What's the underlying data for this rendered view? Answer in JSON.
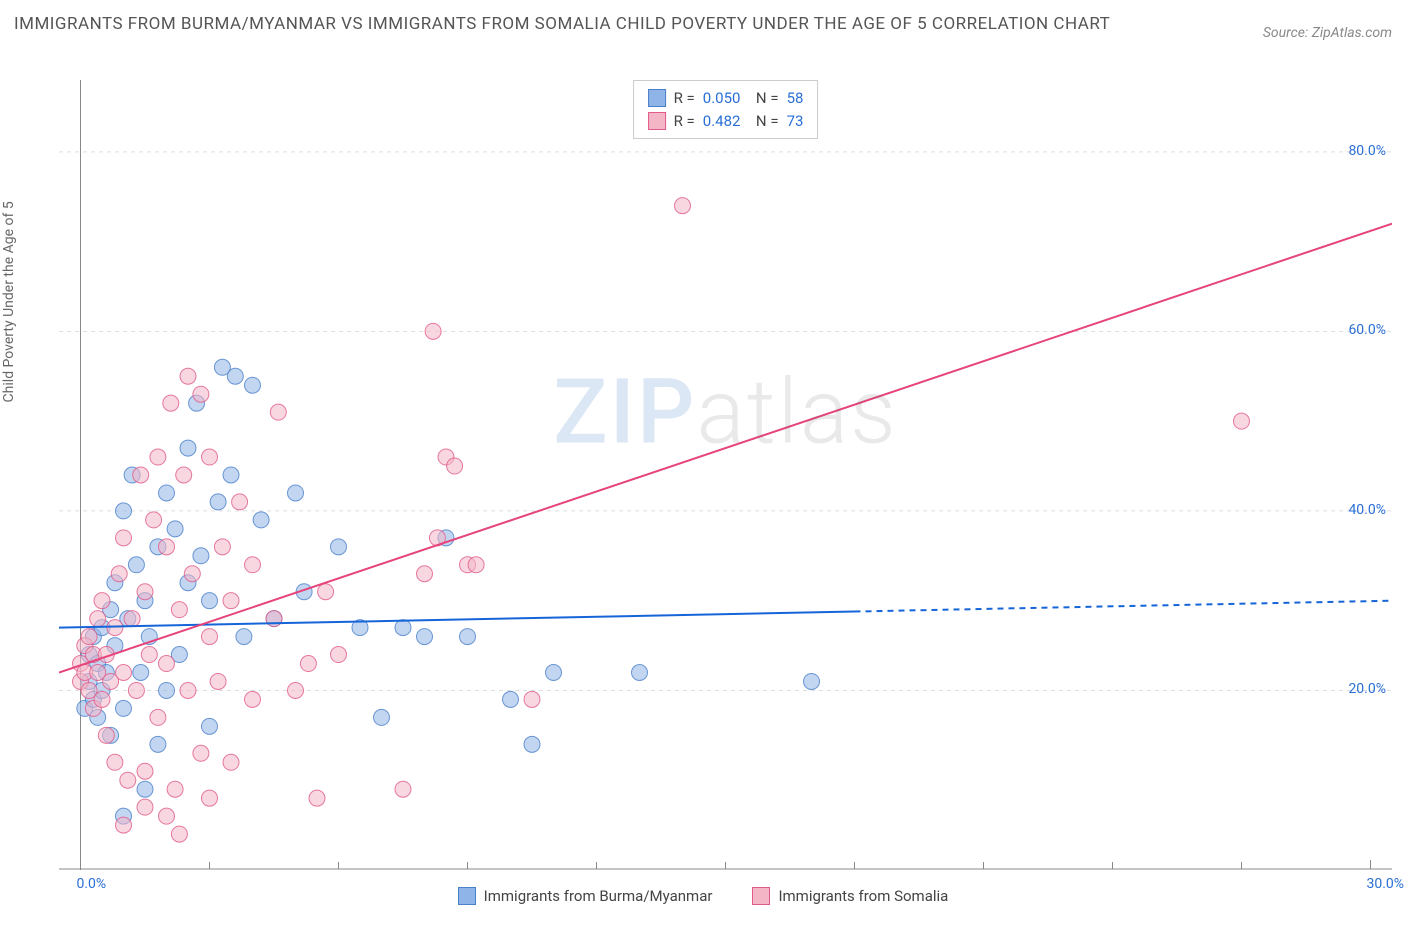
{
  "header": {
    "title": "IMMIGRANTS FROM BURMA/MYANMAR VS IMMIGRANTS FROM SOMALIA CHILD POVERTY UNDER THE AGE OF 5 CORRELATION CHART",
    "source": "Source: ZipAtlas.com"
  },
  "watermark": {
    "part1": "ZIP",
    "part2": "atlas"
  },
  "chart": {
    "type": "scatter",
    "y_axis_label": "Child Poverty Under the Age of 5",
    "background_color": "#ffffff",
    "grid_color": "#dddddd",
    "axis_line_color": "#888888",
    "x_range": [
      -0.5,
      30.5
    ],
    "y_range": [
      0,
      88
    ],
    "x_ticks": [
      0.0,
      30.0
    ],
    "x_tick_labels": [
      "0.0%",
      "30.0%"
    ],
    "x_minor_ticks": [
      3,
      6,
      9,
      12,
      15,
      18,
      21,
      24,
      27
    ],
    "y_ticks": [
      20.0,
      40.0,
      60.0,
      80.0
    ],
    "y_tick_labels": [
      "20.0%",
      "40.0%",
      "60.0%",
      "80.0%"
    ],
    "marker_radius": 8,
    "marker_opacity": 0.55,
    "series": [
      {
        "name": "Immigrants from Burma/Myanmar",
        "color_fill": "#8fb5e8",
        "color_stroke": "#4a7fc9",
        "R": "0.050",
        "N": "58",
        "trend": {
          "x1": -0.5,
          "y1": 27.0,
          "x2": 30.5,
          "y2": 30.0,
          "solid_until_x": 18.0,
          "color": "#1565d8",
          "width": 2
        },
        "points": [
          [
            0.1,
            18
          ],
          [
            0.2,
            21
          ],
          [
            0.2,
            24
          ],
          [
            0.3,
            19
          ],
          [
            0.3,
            26
          ],
          [
            0.4,
            23
          ],
          [
            0.4,
            17
          ],
          [
            0.5,
            27
          ],
          [
            0.5,
            20
          ],
          [
            0.6,
            22
          ],
          [
            0.7,
            29
          ],
          [
            0.7,
            15
          ],
          [
            0.8,
            25
          ],
          [
            0.8,
            32
          ],
          [
            1.0,
            40
          ],
          [
            1.0,
            18
          ],
          [
            1.1,
            28
          ],
          [
            1.2,
            44
          ],
          [
            1.3,
            34
          ],
          [
            1.4,
            22
          ],
          [
            1.5,
            9
          ],
          [
            1.5,
            30
          ],
          [
            1.6,
            26
          ],
          [
            1.8,
            36
          ],
          [
            1.8,
            14
          ],
          [
            2.0,
            42
          ],
          [
            2.0,
            20
          ],
          [
            2.2,
            38
          ],
          [
            2.3,
            24
          ],
          [
            2.5,
            47
          ],
          [
            2.5,
            32
          ],
          [
            2.7,
            52
          ],
          [
            2.8,
            35
          ],
          [
            3.0,
            30
          ],
          [
            3.0,
            16
          ],
          [
            3.2,
            41
          ],
          [
            3.3,
            56
          ],
          [
            3.5,
            44
          ],
          [
            3.6,
            55
          ],
          [
            3.8,
            26
          ],
          [
            4.0,
            54
          ],
          [
            4.2,
            39
          ],
          [
            4.5,
            28
          ],
          [
            5.0,
            42
          ],
          [
            5.2,
            31
          ],
          [
            6.0,
            36
          ],
          [
            6.5,
            27
          ],
          [
            7.0,
            17
          ],
          [
            7.5,
            27
          ],
          [
            8.0,
            26
          ],
          [
            8.5,
            37
          ],
          [
            10.0,
            19
          ],
          [
            10.5,
            14
          ],
          [
            11.0,
            22
          ],
          [
            13.0,
            22
          ],
          [
            17.0,
            21
          ],
          [
            9.0,
            26
          ],
          [
            1.0,
            6
          ]
        ]
      },
      {
        "name": "Immigrants from Somalia",
        "color_fill": "#f4b6c7",
        "color_stroke": "#e05a8a",
        "R": "0.482",
        "N": "73",
        "trend": {
          "x1": -0.5,
          "y1": 22.0,
          "x2": 30.5,
          "y2": 72.0,
          "solid_until_x": 30.5,
          "color": "#e6447b",
          "width": 2
        },
        "points": [
          [
            0.0,
            21
          ],
          [
            0.0,
            23
          ],
          [
            0.1,
            22
          ],
          [
            0.1,
            25
          ],
          [
            0.2,
            20
          ],
          [
            0.2,
            26
          ],
          [
            0.3,
            18
          ],
          [
            0.3,
            24
          ],
          [
            0.4,
            22
          ],
          [
            0.4,
            28
          ],
          [
            0.5,
            19
          ],
          [
            0.5,
            30
          ],
          [
            0.6,
            15
          ],
          [
            0.6,
            24
          ],
          [
            0.7,
            21
          ],
          [
            0.8,
            12
          ],
          [
            0.8,
            27
          ],
          [
            0.9,
            33
          ],
          [
            1.0,
            22
          ],
          [
            1.0,
            37
          ],
          [
            1.1,
            10
          ],
          [
            1.2,
            28
          ],
          [
            1.3,
            20
          ],
          [
            1.4,
            44
          ],
          [
            1.5,
            11
          ],
          [
            1.5,
            31
          ],
          [
            1.6,
            24
          ],
          [
            1.7,
            39
          ],
          [
            1.8,
            17
          ],
          [
            1.8,
            46
          ],
          [
            2.0,
            23
          ],
          [
            2.0,
            36
          ],
          [
            2.1,
            52
          ],
          [
            2.2,
            9
          ],
          [
            2.3,
            29
          ],
          [
            2.4,
            44
          ],
          [
            2.5,
            20
          ],
          [
            2.5,
            55
          ],
          [
            2.6,
            33
          ],
          [
            2.8,
            13
          ],
          [
            2.8,
            53
          ],
          [
            3.0,
            26
          ],
          [
            3.0,
            46
          ],
          [
            3.2,
            21
          ],
          [
            3.3,
            36
          ],
          [
            3.5,
            12
          ],
          [
            3.5,
            30
          ],
          [
            3.7,
            41
          ],
          [
            4.0,
            19
          ],
          [
            4.0,
            34
          ],
          [
            4.5,
            28
          ],
          [
            4.6,
            51
          ],
          [
            5.0,
            20
          ],
          [
            5.3,
            23
          ],
          [
            5.5,
            8
          ],
          [
            5.7,
            31
          ],
          [
            6.0,
            24
          ],
          [
            7.5,
            9
          ],
          [
            8.0,
            33
          ],
          [
            8.2,
            60
          ],
          [
            8.3,
            37
          ],
          [
            8.5,
            46
          ],
          [
            8.7,
            45
          ],
          [
            9.0,
            34
          ],
          [
            9.2,
            34
          ],
          [
            10.5,
            19
          ],
          [
            14.0,
            74
          ],
          [
            27.0,
            50
          ],
          [
            1.0,
            5
          ],
          [
            2.0,
            6
          ],
          [
            2.3,
            4
          ],
          [
            3.0,
            8
          ],
          [
            1.5,
            7
          ]
        ]
      }
    ],
    "bottom_legend": [
      {
        "label": "Immigrants from Burma/Myanmar",
        "fill": "#8fb5e8",
        "stroke": "#4a7fc9"
      },
      {
        "label": "Immigrants from Somalia",
        "fill": "#f4b6c7",
        "stroke": "#e05a8a"
      }
    ]
  }
}
